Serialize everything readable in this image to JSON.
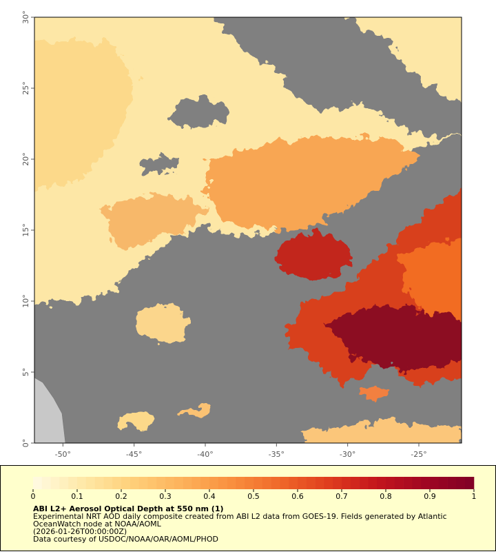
{
  "map": {
    "xlim": [
      -52,
      -22
    ],
    "ylim": [
      0,
      30
    ],
    "xticks": [
      {
        "value": -50,
        "label": "-50°"
      },
      {
        "value": -45,
        "label": "-45°"
      },
      {
        "value": -40,
        "label": "-40°"
      },
      {
        "value": -35,
        "label": "-35°"
      },
      {
        "value": -30,
        "label": "-30°"
      },
      {
        "value": -25,
        "label": "-25°"
      }
    ],
    "yticks": [
      {
        "value": 0,
        "label": "0°"
      },
      {
        "value": 5,
        "label": "5°"
      },
      {
        "value": 10,
        "label": "10°"
      },
      {
        "value": 15,
        "label": "15°"
      },
      {
        "value": 20,
        "label": "20°"
      },
      {
        "value": 25,
        "label": "25°"
      },
      {
        "value": 30,
        "label": "30°"
      }
    ]
  },
  "colorbar": {
    "lim": [
      0,
      1
    ],
    "ticks": [
      0,
      0.1,
      0.2,
      0.3,
      0.4,
      0.5,
      0.6,
      0.7,
      0.8,
      0.9,
      1
    ],
    "colors": [
      "#fffbe3",
      "#fee9a8",
      "#fed07a",
      "#fdb35c",
      "#f9913f",
      "#f06a2a",
      "#e03e1e",
      "#c4161c",
      "#a00622",
      "#800026"
    ]
  },
  "caption": {
    "title": "ABI L2+ Aerosol Optical Depth at 550 nm (1)",
    "lines": [
      "Experimental NRT AOD daily composite created from ABI L2 data from GOES-19. Fields generated by Atlantic",
      "OceanWatch node at NOAA/AOML",
      "(2026-01-26T00:00:00Z)",
      "Data courtesy of USDOC/NOAA/OAR/AOML/PHOD"
    ]
  }
}
